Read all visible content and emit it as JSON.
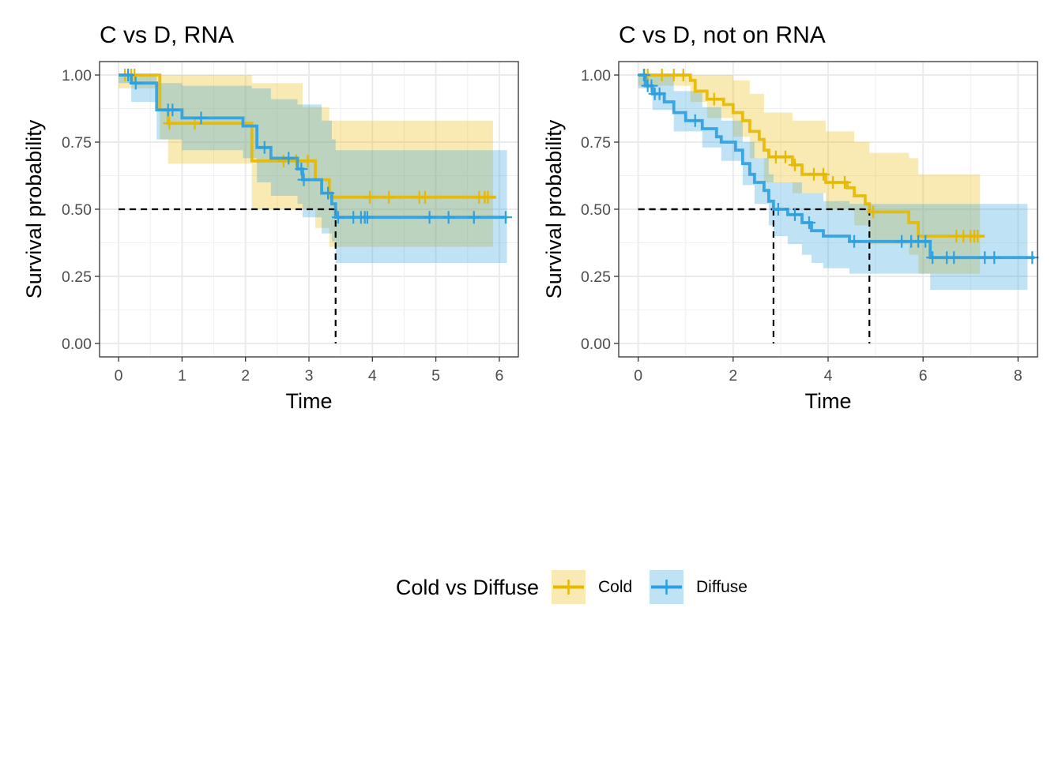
{
  "legend": {
    "title": "Cold vs Diffuse",
    "items": [
      {
        "label": "Cold",
        "color": "#E7B800"
      },
      {
        "label": "Diffuse",
        "color": "#2E9FDF"
      }
    ]
  },
  "chart_data": [
    {
      "type": "line",
      "subtype": "kaplan-meier",
      "title": "C vs D, RNA",
      "xlabel": "Time",
      "ylabel": "Survival probability",
      "xlim": [
        -0.3,
        6.3
      ],
      "ylim": [
        -0.05,
        1.05
      ],
      "xticks": [
        0,
        1,
        2,
        3,
        4,
        5,
        6
      ],
      "xtick_labels": [
        "0",
        "1",
        "2",
        "3",
        "4",
        "5",
        "6"
      ],
      "yticks": [
        0,
        0.25,
        0.5,
        0.75,
        1
      ],
      "ytick_labels": [
        "0.00",
        "0.25",
        "0.50",
        "0.75",
        "1.00"
      ],
      "grid": true,
      "median_lines": [
        {
          "x": 3.42,
          "y": 0.5
        }
      ],
      "series": [
        {
          "name": "Cold",
          "color": "#E7B800",
          "steps": [
            [
              0,
              1
            ],
            [
              0.65,
              0.87
            ],
            [
              0.78,
              0.82
            ],
            [
              2.1,
              0.68
            ],
            [
              3.1,
              0.61
            ],
            [
              3.32,
              0.545
            ],
            [
              5.95,
              0.545
            ]
          ],
          "lower": [
            [
              0,
              0.95
            ],
            [
              0.65,
              0.76
            ],
            [
              0.78,
              0.67
            ],
            [
              1.88,
              0.67
            ],
            [
              2.1,
              0.5
            ],
            [
              3.1,
              0.43
            ],
            [
              3.32,
              0.36
            ],
            [
              5.9,
              0.36
            ]
          ],
          "upper": [
            [
              0,
              1
            ],
            [
              1.85,
              1
            ],
            [
              2.1,
              0.97
            ],
            [
              2.9,
              0.88
            ],
            [
              3.32,
              0.83
            ],
            [
              5.9,
              0.83
            ]
          ],
          "censor_x": [
            0.1,
            0.15,
            0.2,
            0.25,
            0.8,
            1.2,
            2.6,
            2.8,
            2.98,
            3.96,
            4.26,
            4.74,
            4.83,
            5.68,
            5.77,
            5.82
          ]
        },
        {
          "name": "Diffuse",
          "color": "#2E9FDF",
          "steps": [
            [
              0,
              1
            ],
            [
              0.2,
              0.97
            ],
            [
              0.6,
              0.87
            ],
            [
              1.0,
              0.84
            ],
            [
              1.96,
              0.81
            ],
            [
              2.18,
              0.73
            ],
            [
              2.4,
              0.69
            ],
            [
              2.82,
              0.65
            ],
            [
              2.9,
              0.61
            ],
            [
              3.2,
              0.56
            ],
            [
              3.36,
              0.52
            ],
            [
              3.42,
              0.47
            ],
            [
              6.12,
              0.47
            ]
          ],
          "lower": [
            [
              0,
              0.97
            ],
            [
              0.2,
              0.9
            ],
            [
              0.6,
              0.76
            ],
            [
              1.0,
              0.72
            ],
            [
              1.96,
              0.69
            ],
            [
              2.18,
              0.6
            ],
            [
              2.4,
              0.55
            ],
            [
              2.82,
              0.52
            ],
            [
              2.9,
              0.47
            ],
            [
              3.2,
              0.41
            ],
            [
              3.36,
              0.38
            ],
            [
              3.42,
              0.3
            ],
            [
              6.12,
              0.3
            ]
          ],
          "upper": [
            [
              0,
              1
            ],
            [
              0.6,
              0.97
            ],
            [
              1.0,
              0.96
            ],
            [
              2.1,
              0.95
            ],
            [
              2.4,
              0.91
            ],
            [
              2.82,
              0.89
            ],
            [
              3.2,
              0.83
            ],
            [
              3.36,
              0.76
            ],
            [
              3.42,
              0.72
            ],
            [
              6.12,
              0.72
            ]
          ],
          "censor_x": [
            0.15,
            0.27,
            0.78,
            0.85,
            1.3,
            2.3,
            2.68,
            2.88,
            2.92,
            3.3,
            3.46,
            3.7,
            3.82,
            3.88,
            3.92,
            4.9,
            5.2,
            5.6,
            6.1
          ]
        }
      ]
    },
    {
      "type": "line",
      "subtype": "kaplan-meier",
      "title": "C vs D, not on RNA",
      "xlabel": "Time",
      "ylabel": "Survival probability",
      "xlim": [
        -0.41,
        8.41
      ],
      "ylim": [
        -0.05,
        1.05
      ],
      "xticks": [
        0,
        2,
        4,
        6,
        8
      ],
      "xtick_labels": [
        "0",
        "2",
        "4",
        "6",
        "8"
      ],
      "yticks": [
        0,
        0.25,
        0.5,
        0.75,
        1
      ],
      "ytick_labels": [
        "0.00",
        "0.25",
        "0.50",
        "0.75",
        "1.00"
      ],
      "grid": true,
      "median_lines": [
        {
          "x": 2.85,
          "y": 0.5
        },
        {
          "x": 4.87,
          "y": 0.5
        }
      ],
      "series": [
        {
          "name": "Cold",
          "color": "#E7B800",
          "steps": [
            [
              0,
              1
            ],
            [
              1.1,
              0.98
            ],
            [
              1.2,
              0.94
            ],
            [
              1.45,
              0.91
            ],
            [
              1.8,
              0.89
            ],
            [
              2.0,
              0.86
            ],
            [
              2.2,
              0.83
            ],
            [
              2.35,
              0.79
            ],
            [
              2.55,
              0.76
            ],
            [
              2.65,
              0.72
            ],
            [
              2.75,
              0.695
            ],
            [
              3.25,
              0.665
            ],
            [
              3.45,
              0.63
            ],
            [
              3.95,
              0.6
            ],
            [
              4.4,
              0.58
            ],
            [
              4.55,
              0.55
            ],
            [
              4.78,
              0.52
            ],
            [
              4.87,
              0.49
            ],
            [
              5.7,
              0.45
            ],
            [
              5.9,
              0.4
            ],
            [
              7.3,
              0.4
            ]
          ],
          "lower": [
            [
              0,
              0.96
            ],
            [
              1.1,
              0.9
            ],
            [
              1.45,
              0.84
            ],
            [
              2.0,
              0.77
            ],
            [
              2.35,
              0.69
            ],
            [
              2.65,
              0.6
            ],
            [
              3.25,
              0.56
            ],
            [
              3.95,
              0.5
            ],
            [
              4.55,
              0.44
            ],
            [
              4.87,
              0.37
            ],
            [
              5.7,
              0.33
            ],
            [
              5.9,
              0.26
            ],
            [
              7.2,
              0.26
            ]
          ],
          "upper": [
            [
              0,
              1
            ],
            [
              2.0,
              0.98
            ],
            [
              2.35,
              0.93
            ],
            [
              2.65,
              0.86
            ],
            [
              3.25,
              0.83
            ],
            [
              3.95,
              0.79
            ],
            [
              4.55,
              0.75
            ],
            [
              4.87,
              0.71
            ],
            [
              5.7,
              0.69
            ],
            [
              5.9,
              0.63
            ],
            [
              7.2,
              0.63
            ]
          ],
          "censor_x": [
            0.13,
            0.2,
            0.5,
            0.75,
            0.95,
            1.6,
            2.9,
            3.1,
            3.3,
            3.7,
            3.9,
            4.1,
            4.35,
            4.95,
            6.7,
            6.85,
            7.0,
            7.08,
            7.15
          ]
        },
        {
          "name": "Diffuse",
          "color": "#2E9FDF",
          "steps": [
            [
              0,
              1
            ],
            [
              0.15,
              0.96
            ],
            [
              0.3,
              0.93
            ],
            [
              0.55,
              0.9
            ],
            [
              0.75,
              0.86
            ],
            [
              1.0,
              0.83
            ],
            [
              1.35,
              0.8
            ],
            [
              1.65,
              0.77
            ],
            [
              1.75,
              0.75
            ],
            [
              2.05,
              0.72
            ],
            [
              2.2,
              0.67
            ],
            [
              2.35,
              0.63
            ],
            [
              2.45,
              0.6
            ],
            [
              2.65,
              0.57
            ],
            [
              2.75,
              0.53
            ],
            [
              2.85,
              0.5
            ],
            [
              3.15,
              0.48
            ],
            [
              3.45,
              0.45
            ],
            [
              3.65,
              0.42
            ],
            [
              3.9,
              0.4
            ],
            [
              4.45,
              0.38
            ],
            [
              6.15,
              0.32
            ],
            [
              8.35,
              0.32
            ]
          ],
          "lower": [
            [
              0,
              0.95
            ],
            [
              0.3,
              0.87
            ],
            [
              0.75,
              0.79
            ],
            [
              1.35,
              0.73
            ],
            [
              1.75,
              0.68
            ],
            [
              2.2,
              0.59
            ],
            [
              2.45,
              0.52
            ],
            [
              2.75,
              0.44
            ],
            [
              2.85,
              0.4
            ],
            [
              3.15,
              0.37
            ],
            [
              3.45,
              0.33
            ],
            [
              3.65,
              0.3
            ],
            [
              3.9,
              0.28
            ],
            [
              4.45,
              0.26
            ],
            [
              6.15,
              0.2
            ],
            [
              8.2,
              0.2
            ]
          ],
          "upper": [
            [
              0,
              1
            ],
            [
              0.75,
              0.94
            ],
            [
              1.35,
              0.88
            ],
            [
              1.75,
              0.83
            ],
            [
              2.2,
              0.75
            ],
            [
              2.45,
              0.69
            ],
            [
              2.75,
              0.63
            ],
            [
              2.85,
              0.6
            ],
            [
              3.45,
              0.56
            ],
            [
              3.9,
              0.53
            ],
            [
              4.45,
              0.52
            ],
            [
              6.15,
              0.52
            ],
            [
              8.2,
              0.52
            ]
          ],
          "censor_x": [
            0.12,
            0.2,
            0.28,
            0.35,
            0.45,
            1.2,
            2.95,
            3.3,
            3.6,
            4.55,
            5.55,
            5.75,
            5.9,
            6.05,
            6.2,
            6.5,
            6.65,
            7.3,
            7.5,
            8.3
          ]
        }
      ]
    }
  ]
}
